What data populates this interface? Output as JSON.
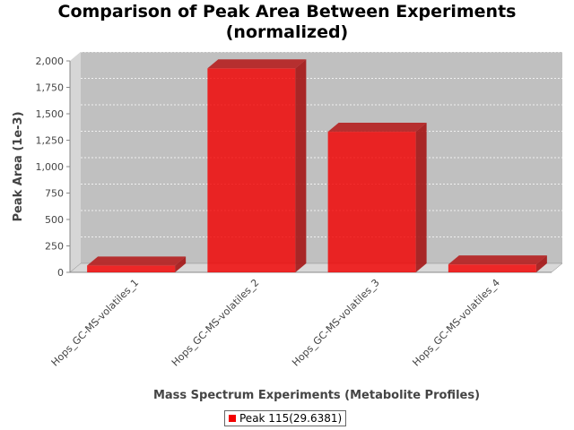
{
  "chart_data": {
    "type": "bar",
    "title_line1": "Comparison of Peak Area Between Experiments",
    "title_line2": "(normalized)",
    "xlabel": "Mass Spectrum Experiments (Metabolite Profiles)",
    "ylabel": "Peak Area (1e-3)",
    "categories": [
      "Hops_GC-MS-volatiles_1",
      "Hops_GC-MS-volatiles_2",
      "Hops_GC-MS-volatiles_3",
      "Hops_GC-MS-volatiles_4"
    ],
    "series": [
      {
        "name": "Peak 115(29.6381)",
        "color": "#f20000",
        "values": [
          65,
          1930,
          1330,
          75
        ]
      }
    ],
    "ylim": [
      0,
      2000
    ],
    "yticks": [
      0,
      250,
      500,
      750,
      1000,
      1250,
      1500,
      1750,
      2000
    ],
    "ytick_labels": [
      "0",
      "250",
      "500",
      "750",
      "1,000",
      "1,250",
      "1,500",
      "1,750",
      "2,000"
    ],
    "grid": true,
    "three_d": true,
    "legend_position": "bottom"
  }
}
